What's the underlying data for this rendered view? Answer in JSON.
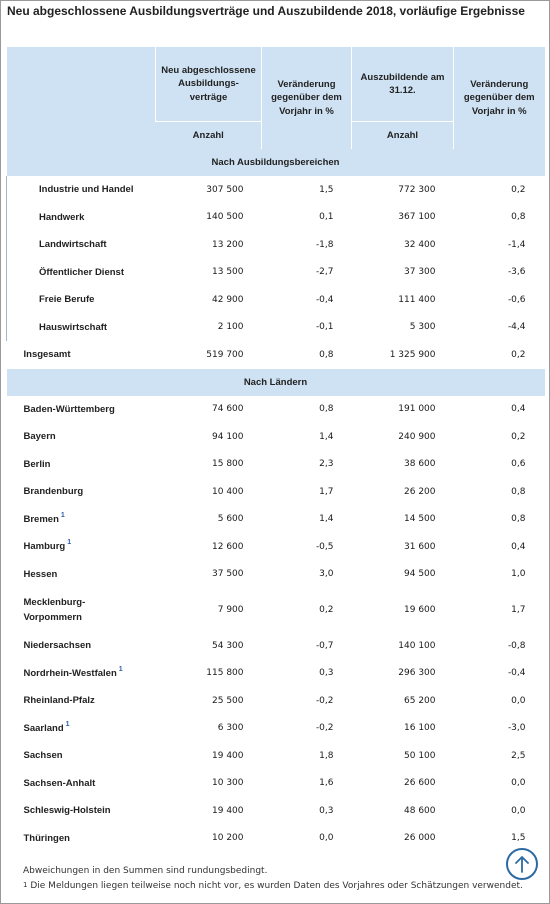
{
  "title": "Neu abgeschlossene Ausbildungsverträge und Auszubildende 2018, vorläufige Ergebnisse",
  "header": {
    "col1": "Neu abgeschlossene Ausbildungs-verträge",
    "col2": "Veränderung gegenüber dem Vorjahr in %",
    "col3": "Auszubildende am 31.12.",
    "col4": "Veränderung gegenüber dem Vorjahr in %",
    "unit1": "Anzahl",
    "unit3": "Anzahl"
  },
  "sections": {
    "bereiche": "Nach Ausbildungsbereichen",
    "laender": "Nach Ländern"
  },
  "bereiche_rows": [
    {
      "label": "Industrie und Handel",
      "v1": "307 500",
      "v2": "1,5",
      "v3": "772 300",
      "v4": "0,2"
    },
    {
      "label": "Handwerk",
      "v1": "140 500",
      "v2": "0,1",
      "v3": "367 100",
      "v4": "0,8"
    },
    {
      "label": "Landwirtschaft",
      "v1": "13 200",
      "v2": "-1,8",
      "v3": "32 400",
      "v4": "-1,4"
    },
    {
      "label": "Öffentlicher Dienst",
      "v1": "13 500",
      "v2": "-2,7",
      "v3": "37 300",
      "v4": "-3,6"
    },
    {
      "label": "Freie Berufe",
      "v1": "42 900",
      "v2": "-0,4",
      "v3": "111 400",
      "v4": "-0,6"
    },
    {
      "label": "Hauswirtschaft",
      "v1": "2 100",
      "v2": "-0,1",
      "v3": "5 300",
      "v4": "-4,4"
    }
  ],
  "total": {
    "label": "Insgesamt",
    "v1": "519 700",
    "v2": "0,8",
    "v3": "1 325 900",
    "v4": "0,2"
  },
  "laender_rows": [
    {
      "label": "Baden-Württemberg",
      "v1": "74 600",
      "v2": "0,8",
      "v3": "191 000",
      "v4": "0,4"
    },
    {
      "label": "Bayern",
      "v1": "94 100",
      "v2": "1,4",
      "v3": "240 900",
      "v4": "0,2"
    },
    {
      "label": "Berlin",
      "v1": "15 800",
      "v2": "2,3",
      "v3": "38 600",
      "v4": "0,6"
    },
    {
      "label": "Brandenburg",
      "v1": "10 400",
      "v2": "1,7",
      "v3": "26 200",
      "v4": "0,8"
    },
    {
      "label": "Bremen",
      "sup": "1",
      "v1": "5 600",
      "v2": "1,4",
      "v3": "14 500",
      "v4": "0,8"
    },
    {
      "label": "Hamburg",
      "sup": "1",
      "v1": "12 600",
      "v2": "-0,5",
      "v3": "31 600",
      "v4": "0,4"
    },
    {
      "label": "Hessen",
      "v1": "37 500",
      "v2": "3,0",
      "v3": "94 500",
      "v4": "1,0"
    },
    {
      "label": "Mecklenburg-Vorpommern",
      "v1": "7 900",
      "v2": "0,2",
      "v3": "19 600",
      "v4": "1,7"
    },
    {
      "label": "Niedersachsen",
      "v1": "54 300",
      "v2": "-0,7",
      "v3": "140 100",
      "v4": "-0,8"
    },
    {
      "label": "Nordrhein-Westfalen",
      "sup": "1",
      "v1": "115 800",
      "v2": "0,3",
      "v3": "296 300",
      "v4": "-0,4"
    },
    {
      "label": "Rheinland-Pfalz",
      "v1": "25 500",
      "v2": "-0,2",
      "v3": "65 200",
      "v4": "0,0"
    },
    {
      "label": "Saarland",
      "sup": "1",
      "v1": "6 300",
      "v2": "-0,2",
      "v3": "16 100",
      "v4": "-3,0"
    },
    {
      "label": "Sachsen",
      "v1": "19 400",
      "v2": "1,8",
      "v3": "50 100",
      "v4": "2,5"
    },
    {
      "label": "Sachsen-Anhalt",
      "v1": "10 300",
      "v2": "1,6",
      "v3": "26 600",
      "v4": "0,0"
    },
    {
      "label": "Schleswig-Holstein",
      "v1": "19 400",
      "v2": "0,3",
      "v3": "48 600",
      "v4": "0,0"
    },
    {
      "label": "Thüringen",
      "v1": "10 200",
      "v2": "0,0",
      "v3": "26 000",
      "v4": "1,5"
    }
  ],
  "footnotes": {
    "note1": "Abweichungen in den Summen sind rundungsbedingt.",
    "note2_marker": "1",
    "note2": "Die Meldungen liegen teilweise noch nicht vor, es wurden Daten des Vorjahres oder Schätzungen verwendet."
  },
  "icons": {
    "back_to_top": "arrow-up-icon"
  },
  "colors": {
    "header_bg": "#cfe2f3",
    "accent": "#2d6aa3"
  }
}
